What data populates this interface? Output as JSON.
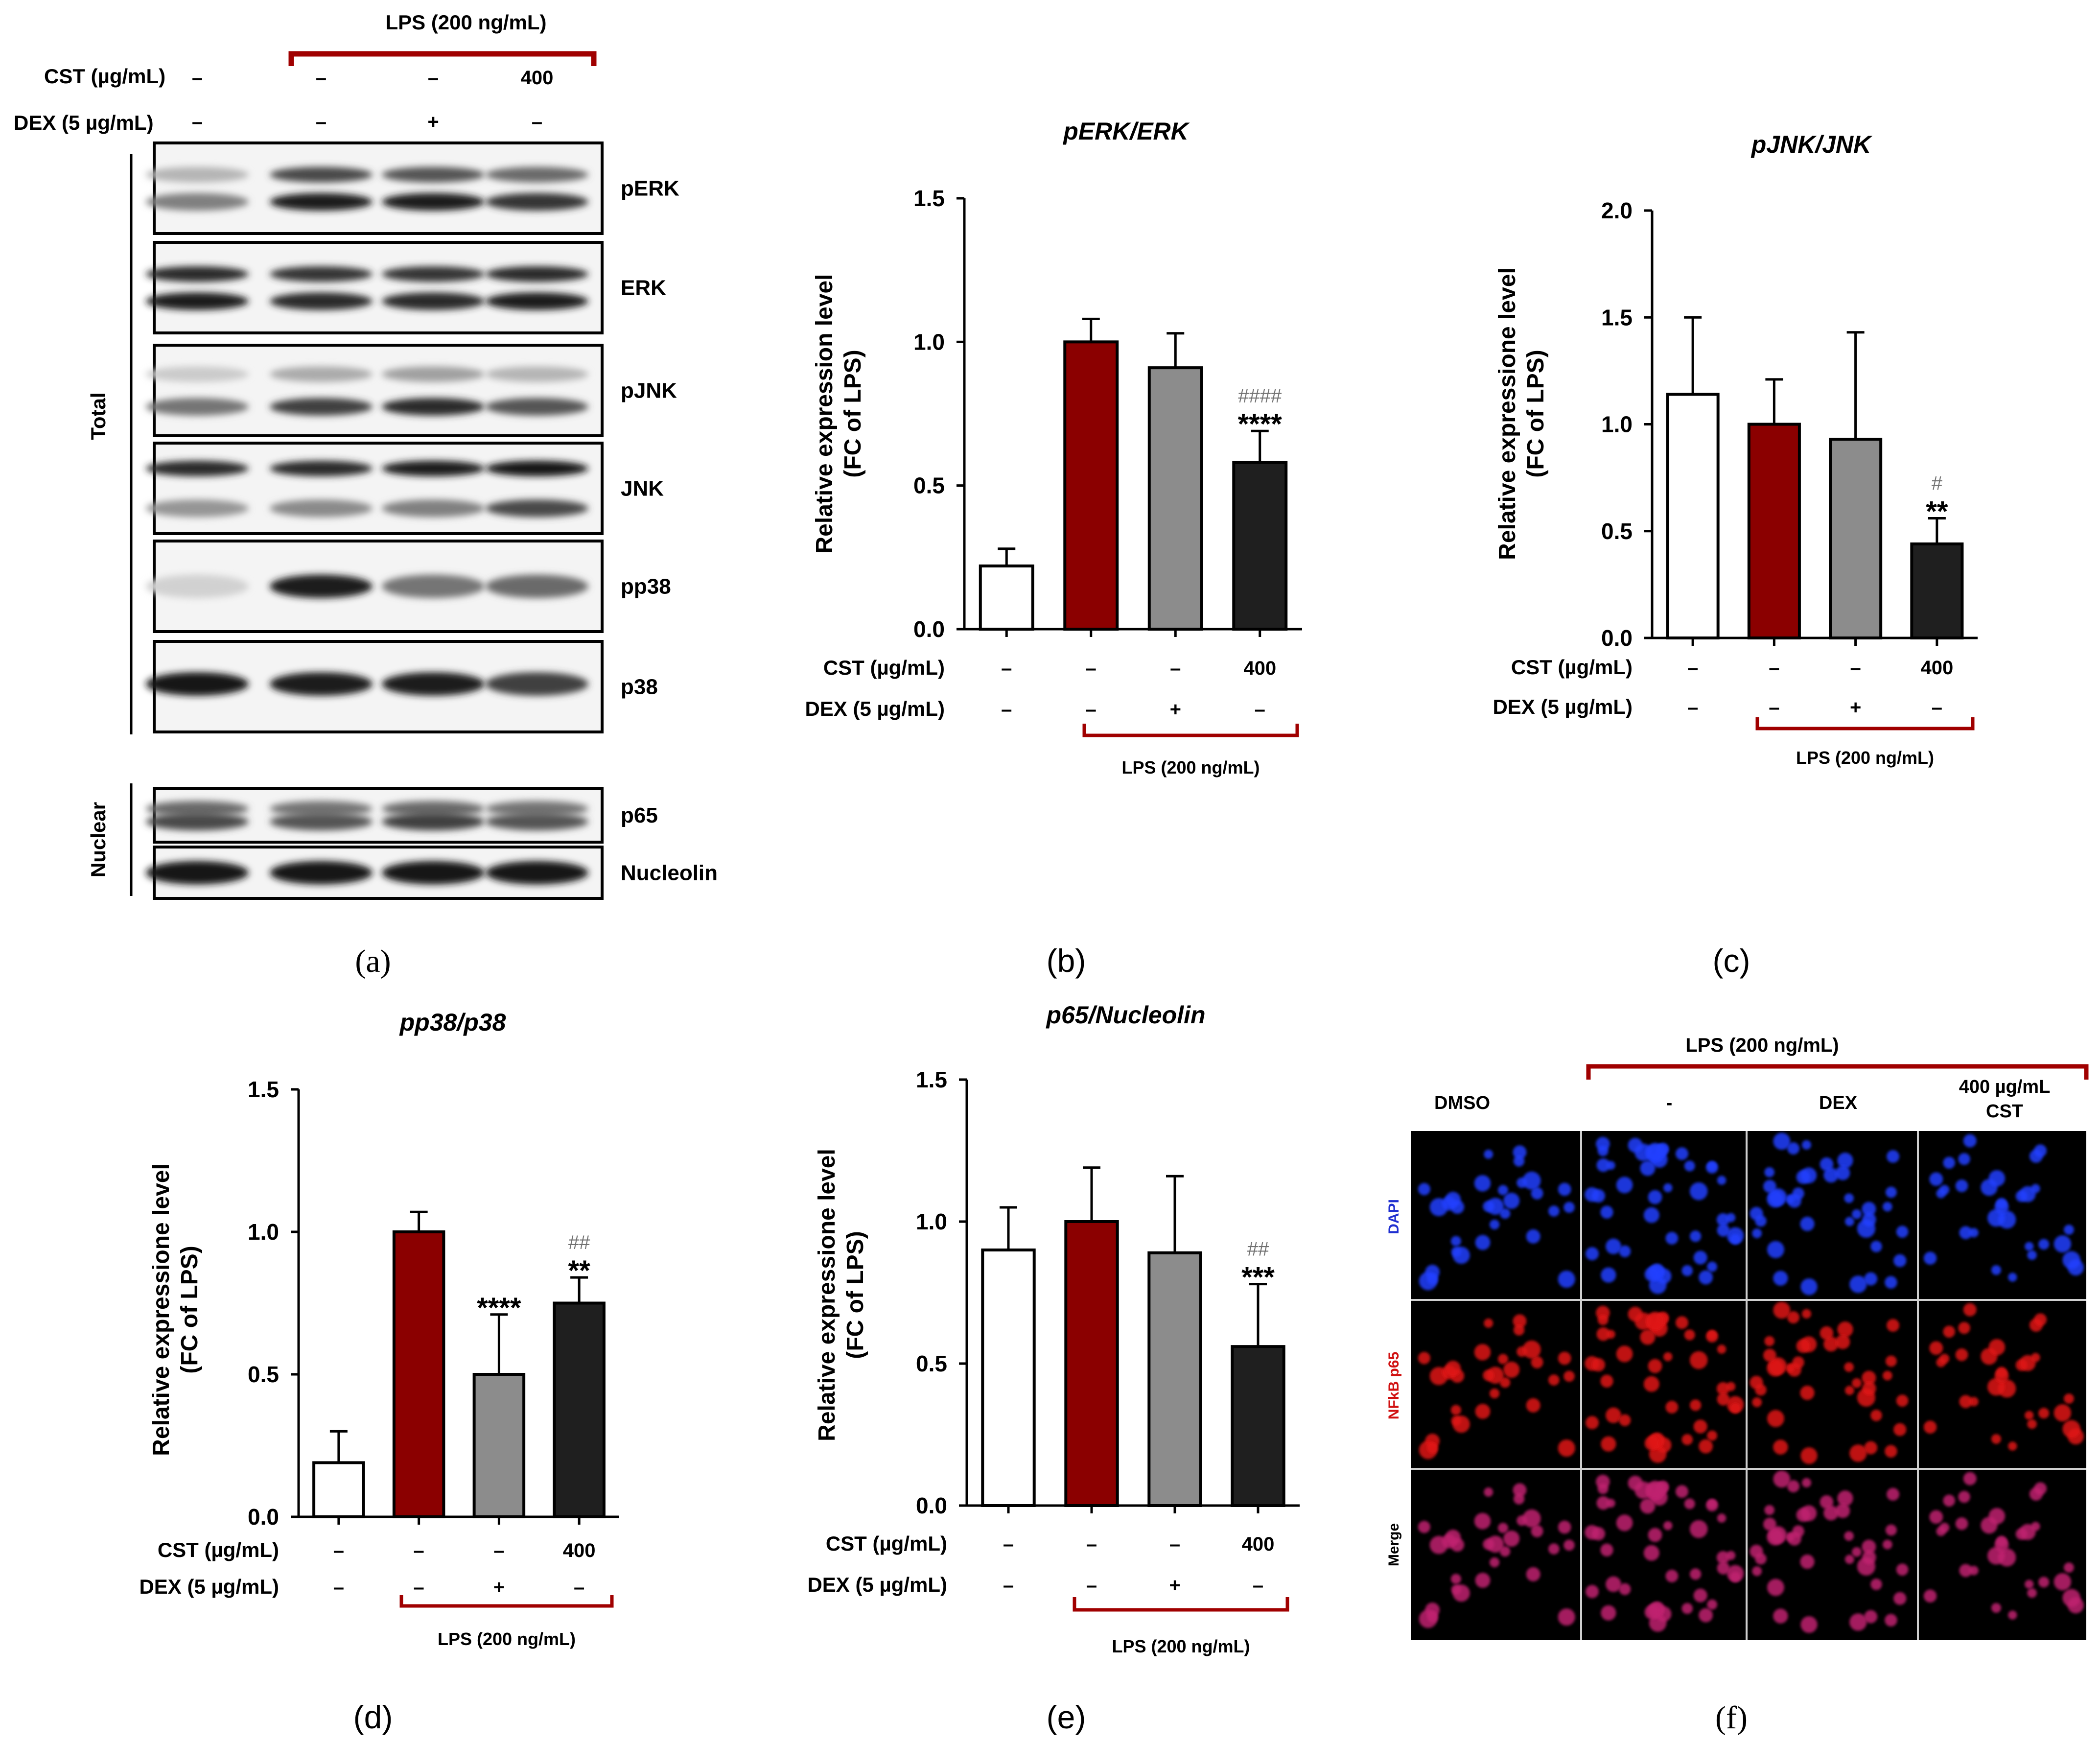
{
  "panels": {
    "a": {
      "letter": "(a)",
      "lps_header": "LPS (200 ng/mL)",
      "cst_row": {
        "label": "CST (µg/mL)",
        "values": [
          "–",
          "–",
          "–",
          "400"
        ]
      },
      "dex_row": {
        "label": "DEX (5 µg/mL)",
        "values": [
          "–",
          "–",
          "+",
          "–"
        ]
      },
      "side_total": "Total",
      "side_nuclear": "Nuclear",
      "blots": [
        {
          "label": "pERK"
        },
        {
          "label": "ERK"
        },
        {
          "label": "pJNK"
        },
        {
          "label": "JNK"
        },
        {
          "label": "pp38"
        },
        {
          "label": "p38"
        },
        {
          "label": "p65"
        },
        {
          "label": "Nucleolin"
        }
      ]
    },
    "f": {
      "letter": "(f)",
      "lps_header": "LPS (200 ng/mL)",
      "columns": [
        "DMSO",
        "-",
        "DEX",
        "400 µg/mL",
        "CST"
      ],
      "rows": [
        "DAPI",
        "NFkB p65",
        "Merge"
      ]
    }
  },
  "chart_data": [
    {
      "panel": "b",
      "letter": "(b)",
      "type": "bar",
      "title": "pERK/ERK",
      "ylabel": [
        "Relative expression level",
        "(FC of LPS)"
      ],
      "ylim": [
        0,
        1.5
      ],
      "yticks": [
        "0.0",
        "0.5",
        "1.0",
        "1.5"
      ],
      "values": [
        0.22,
        1.0,
        0.91,
        0.58
      ],
      "errors": [
        0.06,
        0.08,
        0.12,
        0.11
      ],
      "sig_star": [
        "",
        "",
        "",
        "****"
      ],
      "sig_hash": [
        "",
        "",
        "",
        "####"
      ],
      "cst_label": "CST (µg/mL)",
      "cst": [
        "–",
        "–",
        "–",
        "400"
      ],
      "dex_label": "DEX (5 µg/mL)",
      "dex": [
        "–",
        "–",
        "+",
        "–"
      ],
      "lps_label": "LPS (200 ng/mL)",
      "colors": [
        "#ffffff",
        "#8b0000",
        "#8c8c8c",
        "#1f1f1f"
      ]
    },
    {
      "panel": "c",
      "letter": "(c)",
      "type": "bar",
      "title": "pJNK/JNK",
      "ylabel": [
        "Relative expressione level",
        "(FC of LPS)"
      ],
      "ylim": [
        0,
        2.0
      ],
      "yticks": [
        "0.0",
        "0.5",
        "1.0",
        "1.5",
        "2.0"
      ],
      "values": [
        1.14,
        1.0,
        0.93,
        0.44
      ],
      "errors": [
        0.36,
        0.21,
        0.5,
        0.12
      ],
      "sig_star": [
        "",
        "",
        "",
        "**"
      ],
      "sig_hash": [
        "",
        "",
        "",
        "#"
      ],
      "cst_label": "CST (µg/mL)",
      "cst": [
        "–",
        "–",
        "–",
        "400"
      ],
      "dex_label": "DEX (5 µg/mL)",
      "dex": [
        "–",
        "–",
        "+",
        "–"
      ],
      "lps_label": "LPS (200 ng/mL)",
      "colors": [
        "#ffffff",
        "#8b0000",
        "#8c8c8c",
        "#1f1f1f"
      ]
    },
    {
      "panel": "d",
      "letter": "(d)",
      "type": "bar",
      "title": "pp38/p38",
      "ylabel": [
        "Relative expressione level",
        "(FC of LPS)"
      ],
      "ylim": [
        0,
        1.5
      ],
      "yticks": [
        "0.0",
        "0.5",
        "1.0",
        "1.5"
      ],
      "values": [
        0.19,
        1.0,
        0.5,
        0.75
      ],
      "errors": [
        0.11,
        0.07,
        0.21,
        0.09
      ],
      "sig_star": [
        "",
        "",
        "****",
        "**"
      ],
      "sig_hash": [
        "",
        "",
        "",
        "##"
      ],
      "cst_label": "CST (µg/mL)",
      "cst": [
        "–",
        "–",
        "–",
        "400"
      ],
      "dex_label": "DEX (5 µg/mL)",
      "dex": [
        "–",
        "–",
        "+",
        "–"
      ],
      "lps_label": "LPS (200 ng/mL)",
      "colors": [
        "#ffffff",
        "#8b0000",
        "#8c8c8c",
        "#1f1f1f"
      ]
    },
    {
      "panel": "e",
      "letter": "(e)",
      "type": "bar",
      "title": "p65/Nucleolin",
      "ylabel": [
        "Relative expressione level",
        "(FC of LPS)"
      ],
      "ylim": [
        0,
        1.5
      ],
      "yticks": [
        "0.0",
        "0.5",
        "1.0",
        "1.5"
      ],
      "values": [
        0.9,
        1.0,
        0.89,
        0.56
      ],
      "errors": [
        0.15,
        0.19,
        0.27,
        0.22
      ],
      "sig_star": [
        "",
        "",
        "",
        "***"
      ],
      "sig_hash": [
        "",
        "",
        "",
        "##"
      ],
      "cst_label": "CST (µg/mL)",
      "cst": [
        "–",
        "–",
        "–",
        "400"
      ],
      "dex_label": "DEX (5 µg/mL)",
      "dex": [
        "–",
        "–",
        "+",
        "–"
      ],
      "lps_label": "LPS (200 ng/mL)",
      "colors": [
        "#ffffff",
        "#8b0000",
        "#8c8c8c",
        "#1f1f1f"
      ]
    }
  ]
}
